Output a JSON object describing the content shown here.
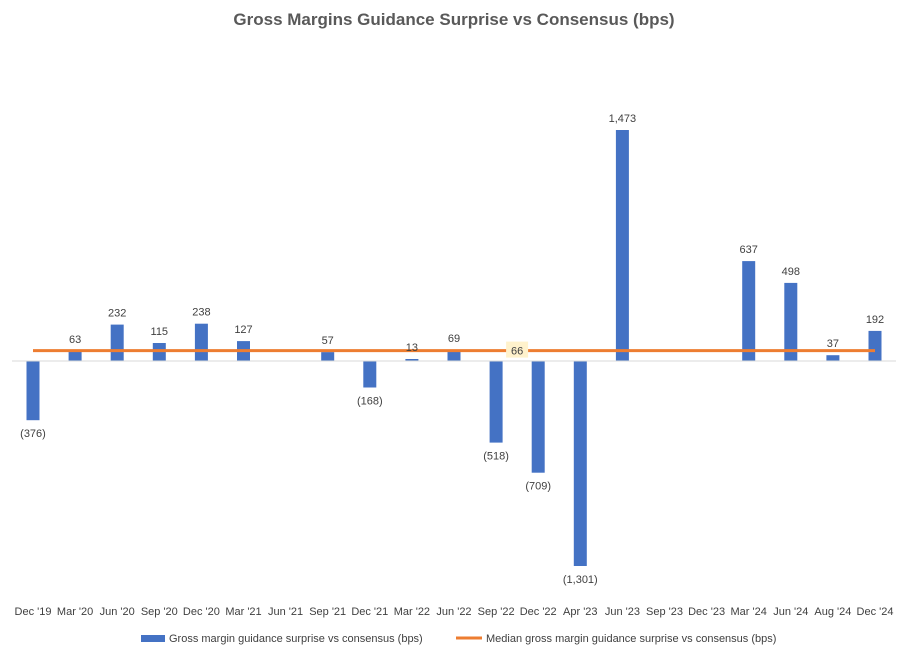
{
  "chart_data": {
    "type": "bar",
    "title": "Gross Margins Guidance Surprise vs Consensus (bps)",
    "xlabel": "",
    "ylabel": "",
    "ylim": [
      -1301,
      1473
    ],
    "categories": [
      "Dec '19",
      "Mar '20",
      "Jun '20",
      "Sep '20",
      "Dec '20",
      "Mar '21",
      "Jun '21",
      "Sep '21",
      "Dec '21",
      "Mar '22",
      "Jun '22",
      "Sep '22",
      "Dec '22",
      "Apr '23",
      "Jun '23",
      "Sep '23",
      "Dec '23",
      "Mar '24",
      "Jun '24",
      "Aug '24",
      "Dec '24"
    ],
    "series": [
      {
        "name": "Gross margin guidance surprise vs consensus (bps)",
        "type": "bar",
        "color": "#4472C4",
        "values": [
          -376,
          63,
          232,
          115,
          238,
          127,
          null,
          57,
          -168,
          13,
          69,
          -518,
          -709,
          -1301,
          1473,
          null,
          null,
          637,
          498,
          37,
          192
        ],
        "labels": [
          "(376)",
          "63",
          "232",
          "115",
          "238",
          "127",
          "",
          "57",
          "(168)",
          "13",
          "69",
          "(518)",
          "(709)",
          "(1,301)",
          "1,473",
          "",
          "",
          "637",
          "498",
          "37",
          "192"
        ]
      },
      {
        "name": "Median gross margin guidance surprise vs consensus (bps)",
        "type": "line",
        "color": "#ED7D31",
        "value": 66,
        "label": "66"
      }
    ],
    "legend_position": "bottom",
    "grid": false
  }
}
